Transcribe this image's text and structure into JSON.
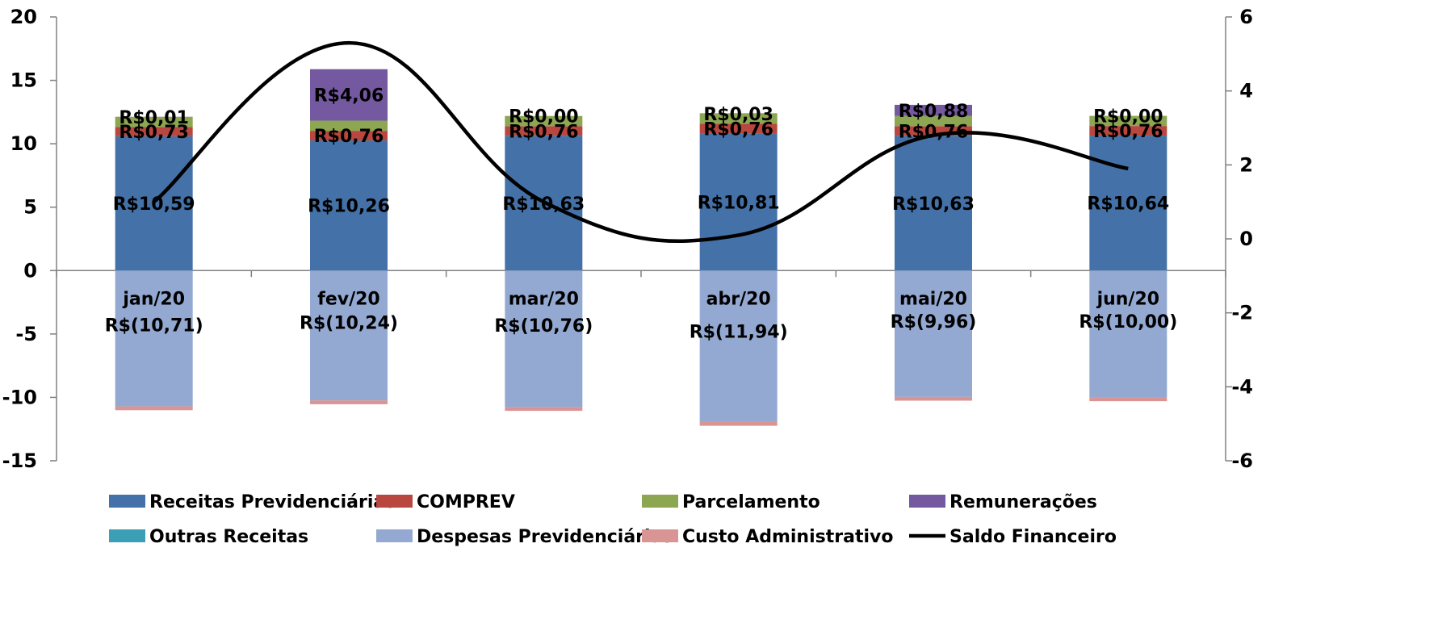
{
  "chart_data": {
    "type": "bar",
    "stacked": true,
    "categories": [
      "jan/20",
      "fev/20",
      "mar/20",
      "abr/20",
      "mai/20",
      "jun/20"
    ],
    "series": [
      {
        "name": "Receitas Previdenciárias",
        "color": "#4472A8",
        "values": [
          10.59,
          10.26,
          10.63,
          10.81,
          10.63,
          10.64
        ],
        "labels": [
          "R$10,59",
          "R$10,26",
          "R$10,63",
          "R$10,81",
          "R$10,63",
          "R$10,64"
        ]
      },
      {
        "name": "COMPREV",
        "color": "#B9463F",
        "values": [
          0.73,
          0.76,
          0.76,
          0.76,
          0.76,
          0.76
        ],
        "labels": [
          "R$0,73",
          "R$0,76",
          "R$0,76",
          "R$0,76",
          "R$0,76",
          "R$0,76"
        ]
      },
      {
        "name": "Parcelamento",
        "color": "#8CA651",
        "values": [
          0.8,
          0.8,
          0.8,
          0.8,
          0.8,
          0.8
        ]
      },
      {
        "name": "Remunerações",
        "color": "#7559A0",
        "values": [
          0.01,
          4.06,
          0.0,
          0.03,
          0.88,
          0.0
        ],
        "labels": [
          "R$0,01",
          "R$4,06",
          "R$0,00",
          "R$0,03",
          "R$0,88",
          "R$0,00"
        ]
      },
      {
        "name": "Outras Receitas",
        "color": "#3B9FB5",
        "values": [
          0,
          0,
          0,
          0,
          0,
          0
        ]
      },
      {
        "name": "Despesas Previdenciárias",
        "color": "#93A9D2",
        "values": [
          -10.71,
          -10.24,
          -10.76,
          -11.94,
          -9.96,
          -10.0
        ],
        "labels": [
          "R$(10,71)",
          "R$(10,24)",
          "R$(10,76)",
          "R$(11,94)",
          "R$(9,96)",
          "R$(10,00)"
        ]
      },
      {
        "name": "Custo Administrativo",
        "color": "#D99593",
        "values": [
          -0.3,
          -0.3,
          -0.3,
          -0.3,
          -0.3,
          -0.3
        ]
      },
      {
        "name": "Saldo Financeiro",
        "type": "line",
        "axis": "right",
        "color": "#000000",
        "values": [
          1.0,
          5.3,
          1.0,
          0.1,
          2.8,
          1.9
        ]
      }
    ],
    "y_left": {
      "min": -15,
      "max": 20,
      "ticks": [
        "20",
        "15",
        "10",
        "5",
        "0",
        "-5",
        "-10",
        "-15"
      ]
    },
    "y_right": {
      "min": -6,
      "max": 6,
      "ticks": [
        "6",
        "4",
        "2",
        "0",
        "-2",
        "-4",
        "-6"
      ]
    },
    "legend_position": "bottom",
    "grid": false
  }
}
